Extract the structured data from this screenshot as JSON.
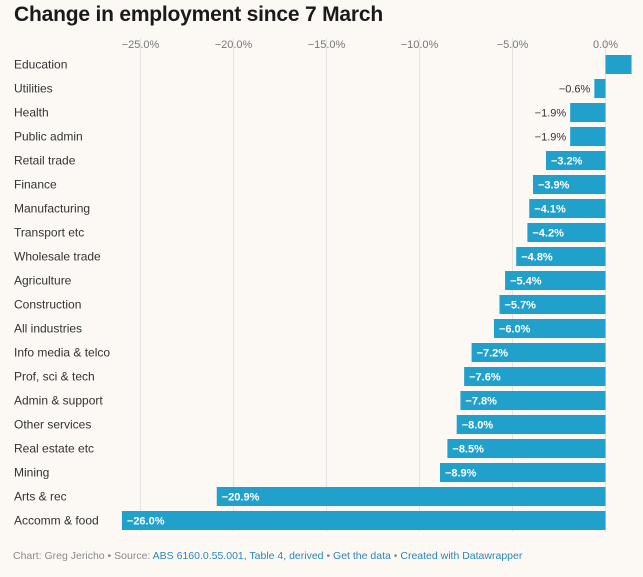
{
  "title": "Change in employment since 7 March",
  "colors": {
    "bar": "#22a0cc",
    "grid": "#e4e4e4",
    "text": "#333333",
    "tick": "#777777"
  },
  "chart_data": {
    "type": "bar",
    "orientation": "horizontal",
    "title": "Change in employment since 7 March",
    "xlabel": "",
    "ylabel": "",
    "xlim": [
      -27.0,
      1.5
    ],
    "ticks": [
      -25.0,
      -20.0,
      -15.0,
      -10.0,
      -5.0,
      0.0
    ],
    "tick_labels": [
      "−25.0%",
      "−20.0%",
      "−15.0%",
      "−10.0%",
      "−5.0%",
      "0.0%"
    ],
    "categories": [
      "Education",
      "Utilities",
      "Health",
      "Public admin",
      "Retail trade",
      "Finance",
      "Manufacturing",
      "Transport etc",
      "Wholesale trade",
      "Agriculture",
      "Construction",
      "All industries",
      "Info media & telco",
      "Prof, sci & tech",
      "Admin & support",
      "Other services",
      "Real estate etc",
      "Mining",
      "Arts & rec",
      "Accomm & food"
    ],
    "values": [
      1.4,
      -0.6,
      -1.9,
      -1.9,
      -3.2,
      -3.9,
      -4.1,
      -4.2,
      -4.8,
      -5.4,
      -5.7,
      -6.0,
      -7.2,
      -7.6,
      -7.8,
      -8.0,
      -8.5,
      -8.9,
      -20.9,
      -26.0
    ],
    "value_labels": [
      "",
      "−0.6%",
      "−1.9%",
      "−1.9%",
      "−3.2%",
      "−3.9%",
      "−4.1%",
      "−4.2%",
      "−4.8%",
      "−5.4%",
      "−5.7%",
      "−6.0%",
      "−7.2%",
      "−7.6%",
      "−7.8%",
      "−8.0%",
      "−8.5%",
      "−8.9%",
      "−20.9%",
      "−26.0%"
    ]
  },
  "footer": {
    "credit": "Chart: Greg Jericho",
    "source_prefix": "Source:",
    "source_link": "ABS 6160.0.55.001, Table 4, derived",
    "get_data": "Get the data",
    "created_with": "Created with Datawrapper"
  }
}
